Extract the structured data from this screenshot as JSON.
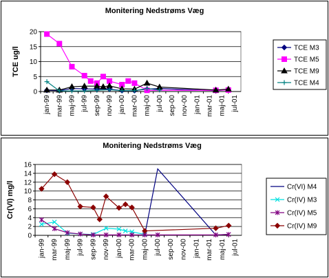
{
  "chart_data": [
    {
      "type": "line",
      "title": "Monitering Nedstrøms Væg",
      "ylabel": "TCE ug/l",
      "xlabel": "",
      "ylim": [
        0,
        20
      ],
      "yticks": [
        0,
        5,
        10,
        15,
        20
      ],
      "grid": true,
      "legend": "right",
      "xticks": [
        "jan-99",
        "mar-99",
        "maj-99",
        "jul-99",
        "sep-99",
        "nov-99",
        "jan-00",
        "mar-00",
        "maj-00",
        "jul-00",
        "sep-00",
        "nov-00",
        "jan-01",
        "mar-01",
        "maj-01",
        "jul-01"
      ],
      "series": [
        {
          "name": "TCE M3",
          "color": "#000080",
          "marker": "diamond",
          "points": [
            [
              0,
              0.4
            ],
            [
              1,
              0.3
            ],
            [
              2,
              1.0
            ],
            [
              3,
              0.9
            ],
            [
              4,
              0.8
            ],
            [
              5,
              0.8
            ],
            [
              6,
              0.3
            ],
            [
              7,
              0.3
            ],
            [
              8,
              0.8
            ],
            [
              9,
              1.0
            ],
            [
              13.5,
              0.3
            ],
            [
              14.5,
              0.6
            ]
          ]
        },
        {
          "name": "TCE M5",
          "color": "#ff00ff",
          "marker": "square",
          "points": [
            [
              0,
              19.2
            ],
            [
              1,
              16.0
            ],
            [
              2,
              8.3
            ],
            [
              3,
              5.3
            ],
            [
              3.5,
              3.5
            ],
            [
              4,
              2.8
            ],
            [
              4.5,
              5.0
            ],
            [
              5,
              3.5
            ],
            [
              6,
              2.3
            ],
            [
              6.5,
              3.5
            ],
            [
              7,
              2.8
            ],
            [
              8,
              0.4
            ],
            [
              13.5,
              0.4
            ],
            [
              14.5,
              0.5
            ]
          ]
        },
        {
          "name": "TCE M9",
          "color": "#000000",
          "marker": "triangle",
          "points": [
            [
              0,
              0.5
            ],
            [
              1,
              0.5
            ],
            [
              2,
              1.6
            ],
            [
              3,
              1.8
            ],
            [
              4,
              1.8
            ],
            [
              4.5,
              1.6
            ],
            [
              5,
              1.9
            ],
            [
              6,
              0.9
            ],
            [
              7,
              0.8
            ],
            [
              8,
              2.8
            ],
            [
              9,
              1.5
            ],
            [
              13.5,
              0.5
            ],
            [
              14.5,
              0.8
            ]
          ]
        },
        {
          "name": "TCE M4",
          "color": "#008080",
          "marker": "plus",
          "points": [
            [
              0,
              3.3
            ],
            [
              1,
              0.2
            ],
            [
              2,
              0.2
            ],
            [
              3,
              0.2
            ],
            [
              4,
              0.4
            ],
            [
              5,
              0.6
            ],
            [
              6,
              0.3
            ],
            [
              7,
              0.3
            ],
            [
              8,
              1.0
            ],
            [
              9,
              0.5
            ]
          ]
        }
      ]
    },
    {
      "type": "line",
      "title": "Monitering Nedstrøms Væg",
      "ylabel": "Cr(VI) mg/l",
      "xlabel": "",
      "ylim": [
        0,
        16
      ],
      "yticks": [
        0,
        2,
        4,
        6,
        8,
        10,
        12,
        14,
        16
      ],
      "grid": true,
      "legend": "right",
      "xticks": [
        "jan-99",
        "mar-99",
        "maj-99",
        "jul-99",
        "sep-99",
        "nov-99",
        "jan-00",
        "mar-00",
        "maj-00",
        "jul-00",
        "sep-00",
        "nov-00",
        "jan-01",
        "mar-01",
        "maj-01",
        "jul-01"
      ],
      "series": [
        {
          "name": "Cr(VI) M4",
          "color": "#000080",
          "marker": "none",
          "points": [
            [
              8,
              0.1
            ],
            [
              9,
              15.0
            ],
            [
              13.5,
              0.1
            ],
            [
              14.5,
              0.2
            ]
          ]
        },
        {
          "name": "Cr(IV) M3",
          "color": "#00e0e0",
          "marker": "x",
          "points": [
            [
              0,
              2.5
            ],
            [
              1,
              3.0
            ],
            [
              2,
              0.5
            ],
            [
              3,
              0.3
            ],
            [
              4,
              0.2
            ],
            [
              5,
              1.6
            ],
            [
              6,
              1.4
            ],
            [
              6.5,
              1.0
            ],
            [
              7,
              0.8
            ],
            [
              8,
              0.2
            ]
          ]
        },
        {
          "name": "Cr(IV) M5",
          "color": "#800080",
          "marker": "star",
          "points": [
            [
              0,
              3.5
            ],
            [
              1,
              1.5
            ],
            [
              2,
              0.6
            ],
            [
              3,
              0.3
            ],
            [
              4,
              0.1
            ],
            [
              5,
              0.1
            ],
            [
              6,
              0.1
            ],
            [
              7,
              0.1
            ],
            [
              8,
              0.1
            ],
            [
              9,
              0.1
            ],
            [
              13.5,
              0.1
            ],
            [
              14.5,
              0.2
            ]
          ]
        },
        {
          "name": "Cr(IV) M9",
          "color": "#8b0000",
          "marker": "diamond",
          "points": [
            [
              0,
              10.5
            ],
            [
              1,
              13.8
            ],
            [
              2,
              12.0
            ],
            [
              3,
              6.5
            ],
            [
              4,
              6.3
            ],
            [
              4.5,
              3.6
            ],
            [
              5,
              8.8
            ],
            [
              6,
              6.2
            ],
            [
              6.5,
              7.0
            ],
            [
              7,
              6.3
            ],
            [
              8,
              1.0
            ],
            [
              13.5,
              1.6
            ],
            [
              14.5,
              2.2
            ]
          ]
        }
      ]
    }
  ]
}
